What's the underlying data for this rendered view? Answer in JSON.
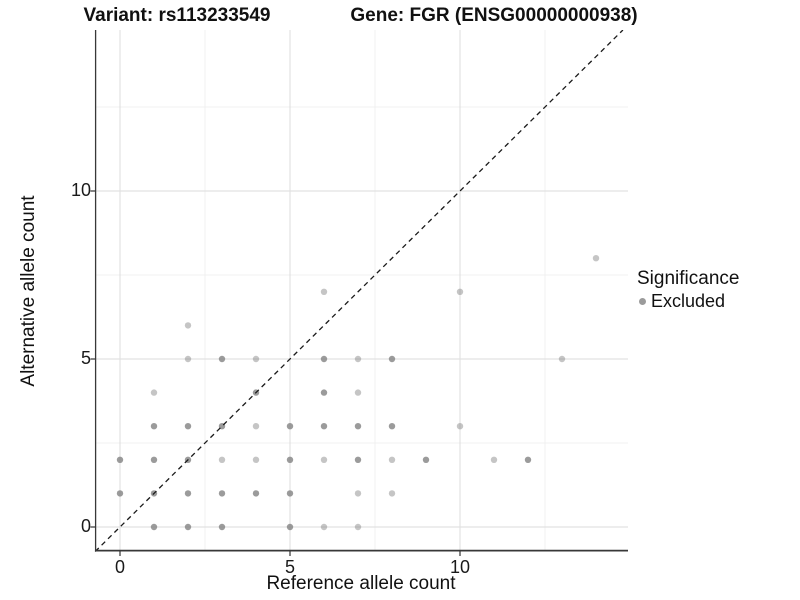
{
  "titles": {
    "variant": "Variant: rs113233549",
    "gene": "Gene: FGR (ENSG00000000938)"
  },
  "legend": {
    "title": "Significance",
    "items": [
      {
        "label": "Excluded",
        "color": "#9b9b9b"
      }
    ]
  },
  "style": {
    "point_color": "#7f7f7f",
    "alpha_light": 0.45,
    "alpha_dark": 0.78,
    "grid_major": "#e2e2e2",
    "grid_minor": "#f0f0f0",
    "axis_line": "#383838",
    "tick_color": "#333333"
  },
  "chart_data": {
    "type": "scatter",
    "title": "Variant: rs113233549 — Gene: FGR (ENSG00000000938)",
    "xlabel": "Reference allele count",
    "ylabel": "Alternative allele count",
    "xlim": [
      -0.75,
      14.95
    ],
    "ylim": [
      -0.75,
      14.8
    ],
    "x_ticks": [
      0,
      5,
      10
    ],
    "y_ticks": [
      0,
      5,
      10
    ],
    "grid": {
      "major": [
        0,
        5,
        10
      ],
      "minor": [
        2.5,
        7.5,
        12.5
      ]
    },
    "legend_position": "right",
    "identity_line": {
      "slope": 1,
      "intercept": 0,
      "style": "dashed",
      "color": "#1a1a1a"
    },
    "points_format": "[x, y, shade] where shade 1 = light single point, 2 = darker overlapping point",
    "series": [
      {
        "name": "Excluded",
        "points": [
          [
            1,
            0,
            2
          ],
          [
            2,
            0,
            2
          ],
          [
            3,
            0,
            2
          ],
          [
            5,
            0,
            2
          ],
          [
            6,
            0,
            1
          ],
          [
            7,
            0,
            1
          ],
          [
            0,
            1,
            2
          ],
          [
            1,
            1,
            2
          ],
          [
            2,
            1,
            2
          ],
          [
            3,
            1,
            2
          ],
          [
            4,
            1,
            2
          ],
          [
            5,
            1,
            2
          ],
          [
            7,
            1,
            1
          ],
          [
            8,
            1,
            1
          ],
          [
            0,
            2,
            2
          ],
          [
            1,
            2,
            2
          ],
          [
            2,
            2,
            2
          ],
          [
            3,
            2,
            1
          ],
          [
            4,
            2,
            1
          ],
          [
            5,
            2,
            2
          ],
          [
            6,
            2,
            1
          ],
          [
            7,
            2,
            2
          ],
          [
            8,
            2,
            1
          ],
          [
            9,
            2,
            2
          ],
          [
            11,
            2,
            1
          ],
          [
            12,
            2,
            2
          ],
          [
            1,
            3,
            2
          ],
          [
            2,
            3,
            2
          ],
          [
            3,
            3,
            2
          ],
          [
            4,
            3,
            1
          ],
          [
            5,
            3,
            2
          ],
          [
            6,
            3,
            2
          ],
          [
            7,
            3,
            2
          ],
          [
            8,
            3,
            2
          ],
          [
            10,
            3,
            1
          ],
          [
            1,
            4,
            1
          ],
          [
            4,
            4,
            2
          ],
          [
            6,
            4,
            2
          ],
          [
            7,
            4,
            1
          ],
          [
            2,
            5,
            1
          ],
          [
            3,
            5,
            2
          ],
          [
            4,
            5,
            1
          ],
          [
            6,
            5,
            2
          ],
          [
            7,
            5,
            1
          ],
          [
            8,
            5,
            2
          ],
          [
            13,
            5,
            1
          ],
          [
            2,
            6,
            1
          ],
          [
            6,
            7,
            1
          ],
          [
            10,
            7,
            1
          ],
          [
            14,
            8,
            1
          ]
        ]
      }
    ]
  }
}
